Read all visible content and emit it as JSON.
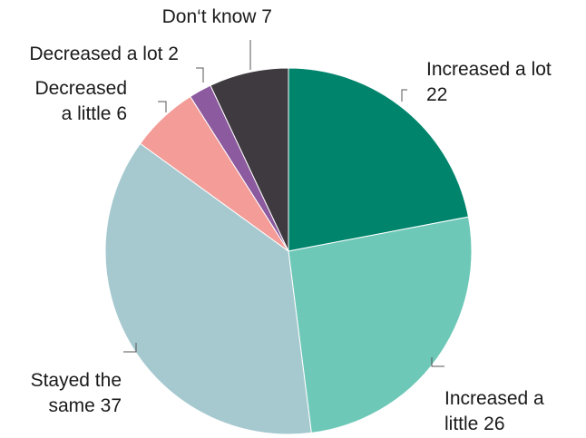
{
  "chart_data": {
    "type": "pie",
    "title": "",
    "slices": [
      {
        "label_lines": [
          "Increased a lot",
          "22"
        ],
        "value": 22,
        "color": "#00846c"
      },
      {
        "label_lines": [
          "Increased a",
          "little 26"
        ],
        "value": 26,
        "color": "#6ec8b7"
      },
      {
        "label_lines": [
          "Stayed the",
          "same 37"
        ],
        "value": 37,
        "color": "#a6c9d0"
      },
      {
        "label_lines": [
          "Decreased",
          "a little 6"
        ],
        "value": 6,
        "color": "#f49c98"
      },
      {
        "label_lines": [
          "Decreased a lot 2"
        ],
        "value": 2,
        "color": "#8c5a9e"
      },
      {
        "label_lines": [
          "Don‘t know 7"
        ],
        "value": 7,
        "color": "#3e3a3f"
      }
    ]
  }
}
